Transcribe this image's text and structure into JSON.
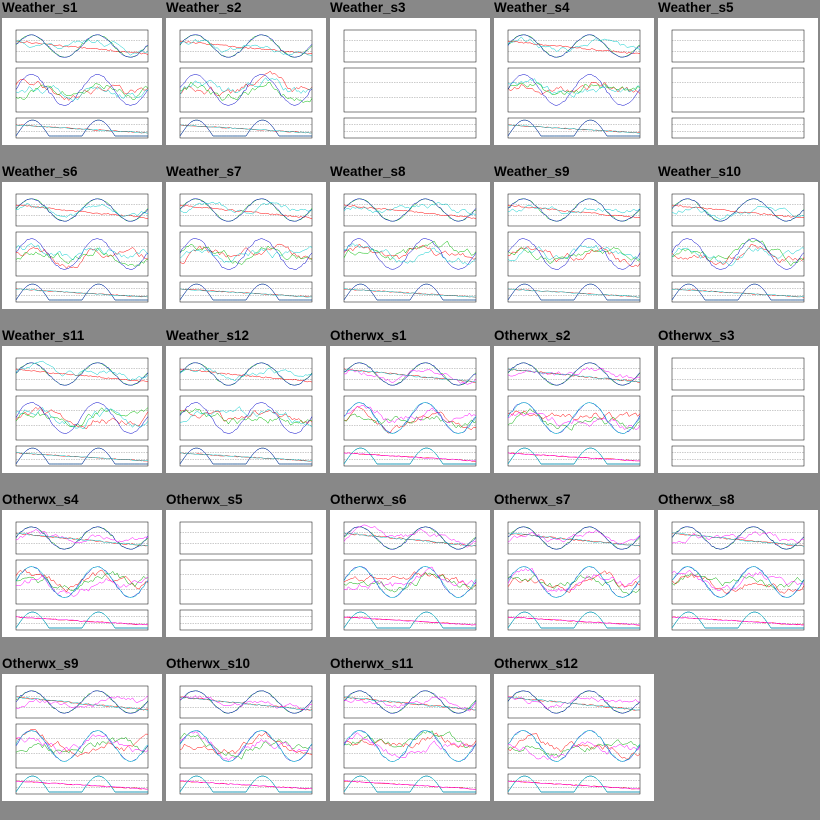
{
  "grid": {
    "columns": 5,
    "background": "#888888",
    "thumbnail_background": "#ffffff"
  },
  "panel_types": {
    "weather": {
      "series": [
        {
          "color": "#ff0000"
        },
        {
          "color": "#00bb00"
        },
        {
          "color": "#0000cc"
        },
        {
          "color": "#00cccc"
        }
      ]
    },
    "otherwx": {
      "series": [
        {
          "color": "#ff0000"
        },
        {
          "color": "#00aa00"
        },
        {
          "color": "#0000cc"
        },
        {
          "color": "#ff00ff"
        },
        {
          "color": "#00cccc"
        }
      ]
    }
  },
  "panels": [
    {
      "title": "Weather_s1",
      "type": "weather",
      "has_data": true
    },
    {
      "title": "Weather_s2",
      "type": "weather",
      "has_data": true
    },
    {
      "title": "Weather_s3",
      "type": "weather",
      "has_data": false
    },
    {
      "title": "Weather_s4",
      "type": "weather",
      "has_data": true
    },
    {
      "title": "Weather_s5",
      "type": "weather",
      "has_data": false
    },
    {
      "title": "Weather_s6",
      "type": "weather",
      "has_data": true
    },
    {
      "title": "Weather_s7",
      "type": "weather",
      "has_data": true
    },
    {
      "title": "Weather_s8",
      "type": "weather",
      "has_data": true
    },
    {
      "title": "Weather_s9",
      "type": "weather",
      "has_data": true
    },
    {
      "title": "Weather_s10",
      "type": "weather",
      "has_data": true
    },
    {
      "title": "Weather_s11",
      "type": "weather",
      "has_data": true
    },
    {
      "title": "Weather_s12",
      "type": "weather",
      "has_data": true
    },
    {
      "title": "Otherwx_s1",
      "type": "otherwx",
      "has_data": true
    },
    {
      "title": "Otherwx_s2",
      "type": "otherwx",
      "has_data": true
    },
    {
      "title": "Otherwx_s3",
      "type": "otherwx",
      "has_data": false
    },
    {
      "title": "Otherwx_s4",
      "type": "otherwx",
      "has_data": true
    },
    {
      "title": "Otherwx_s5",
      "type": "otherwx",
      "has_data": false
    },
    {
      "title": "Otherwx_s6",
      "type": "otherwx",
      "has_data": true
    },
    {
      "title": "Otherwx_s7",
      "type": "otherwx",
      "has_data": true
    },
    {
      "title": "Otherwx_s8",
      "type": "otherwx",
      "has_data": true
    },
    {
      "title": "Otherwx_s9",
      "type": "otherwx",
      "has_data": true
    },
    {
      "title": "Otherwx_s10",
      "type": "otherwx",
      "has_data": true
    },
    {
      "title": "Otherwx_s11",
      "type": "otherwx",
      "has_data": true
    },
    {
      "title": "Otherwx_s12",
      "type": "otherwx",
      "has_data": true
    }
  ],
  "chart_data": {
    "type": "line",
    "title": "",
    "description_of_grid": "contact sheet of 24 weather-station time-series thumbnails, each with three stacked sub-plots",
    "sub_plots_per_panel": 3
  }
}
